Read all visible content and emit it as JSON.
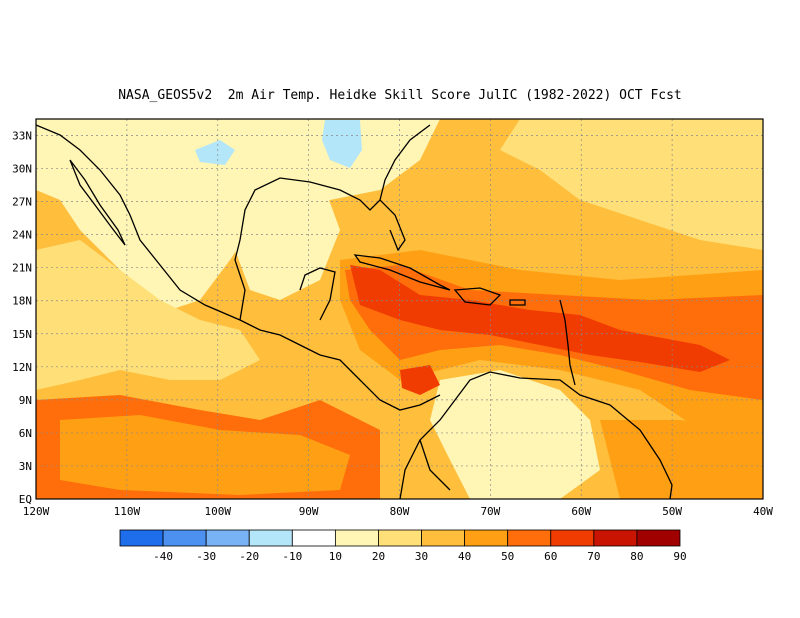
{
  "title": "NASA_GEOS5v2  2m Air Temp. Heidke Skill Score JulIC (1982-2022) OCT Fcst",
  "lat_labels": [
    "33N",
    "30N",
    "27N",
    "24N",
    "21N",
    "18N",
    "15N",
    "12N",
    "9N",
    "6N",
    "3N",
    "EQ"
  ],
  "lon_labels": [
    "120W",
    "110W",
    "100W",
    "90W",
    "80W",
    "70W",
    "60W",
    "50W",
    "40W"
  ],
  "colorbar": {
    "labels": [
      "-40",
      "-30",
      "-20",
      "-10",
      "10",
      "20",
      "30",
      "40",
      "50",
      "60",
      "70",
      "80",
      "90"
    ],
    "colors": [
      "#1e6eeb",
      "#4d91f0",
      "#78b4f5",
      "#b4e6fa",
      "#ffffff",
      "#fff5b4",
      "#ffe078",
      "#ffbe3c",
      "#ffa014",
      "#ff6e0a",
      "#f03c00",
      "#c81400",
      "#a00000"
    ]
  },
  "map_colors": {
    "ocean_base": "#ffbe3c",
    "band_high": "#f03c00",
    "band_mid": "#ff6e0a",
    "band_low": "#ffa014",
    "pale": "#ffe078",
    "paler": "#fff5b4",
    "negative": "#b4e6fa",
    "coast": "#000000",
    "grid": "#888888"
  }
}
